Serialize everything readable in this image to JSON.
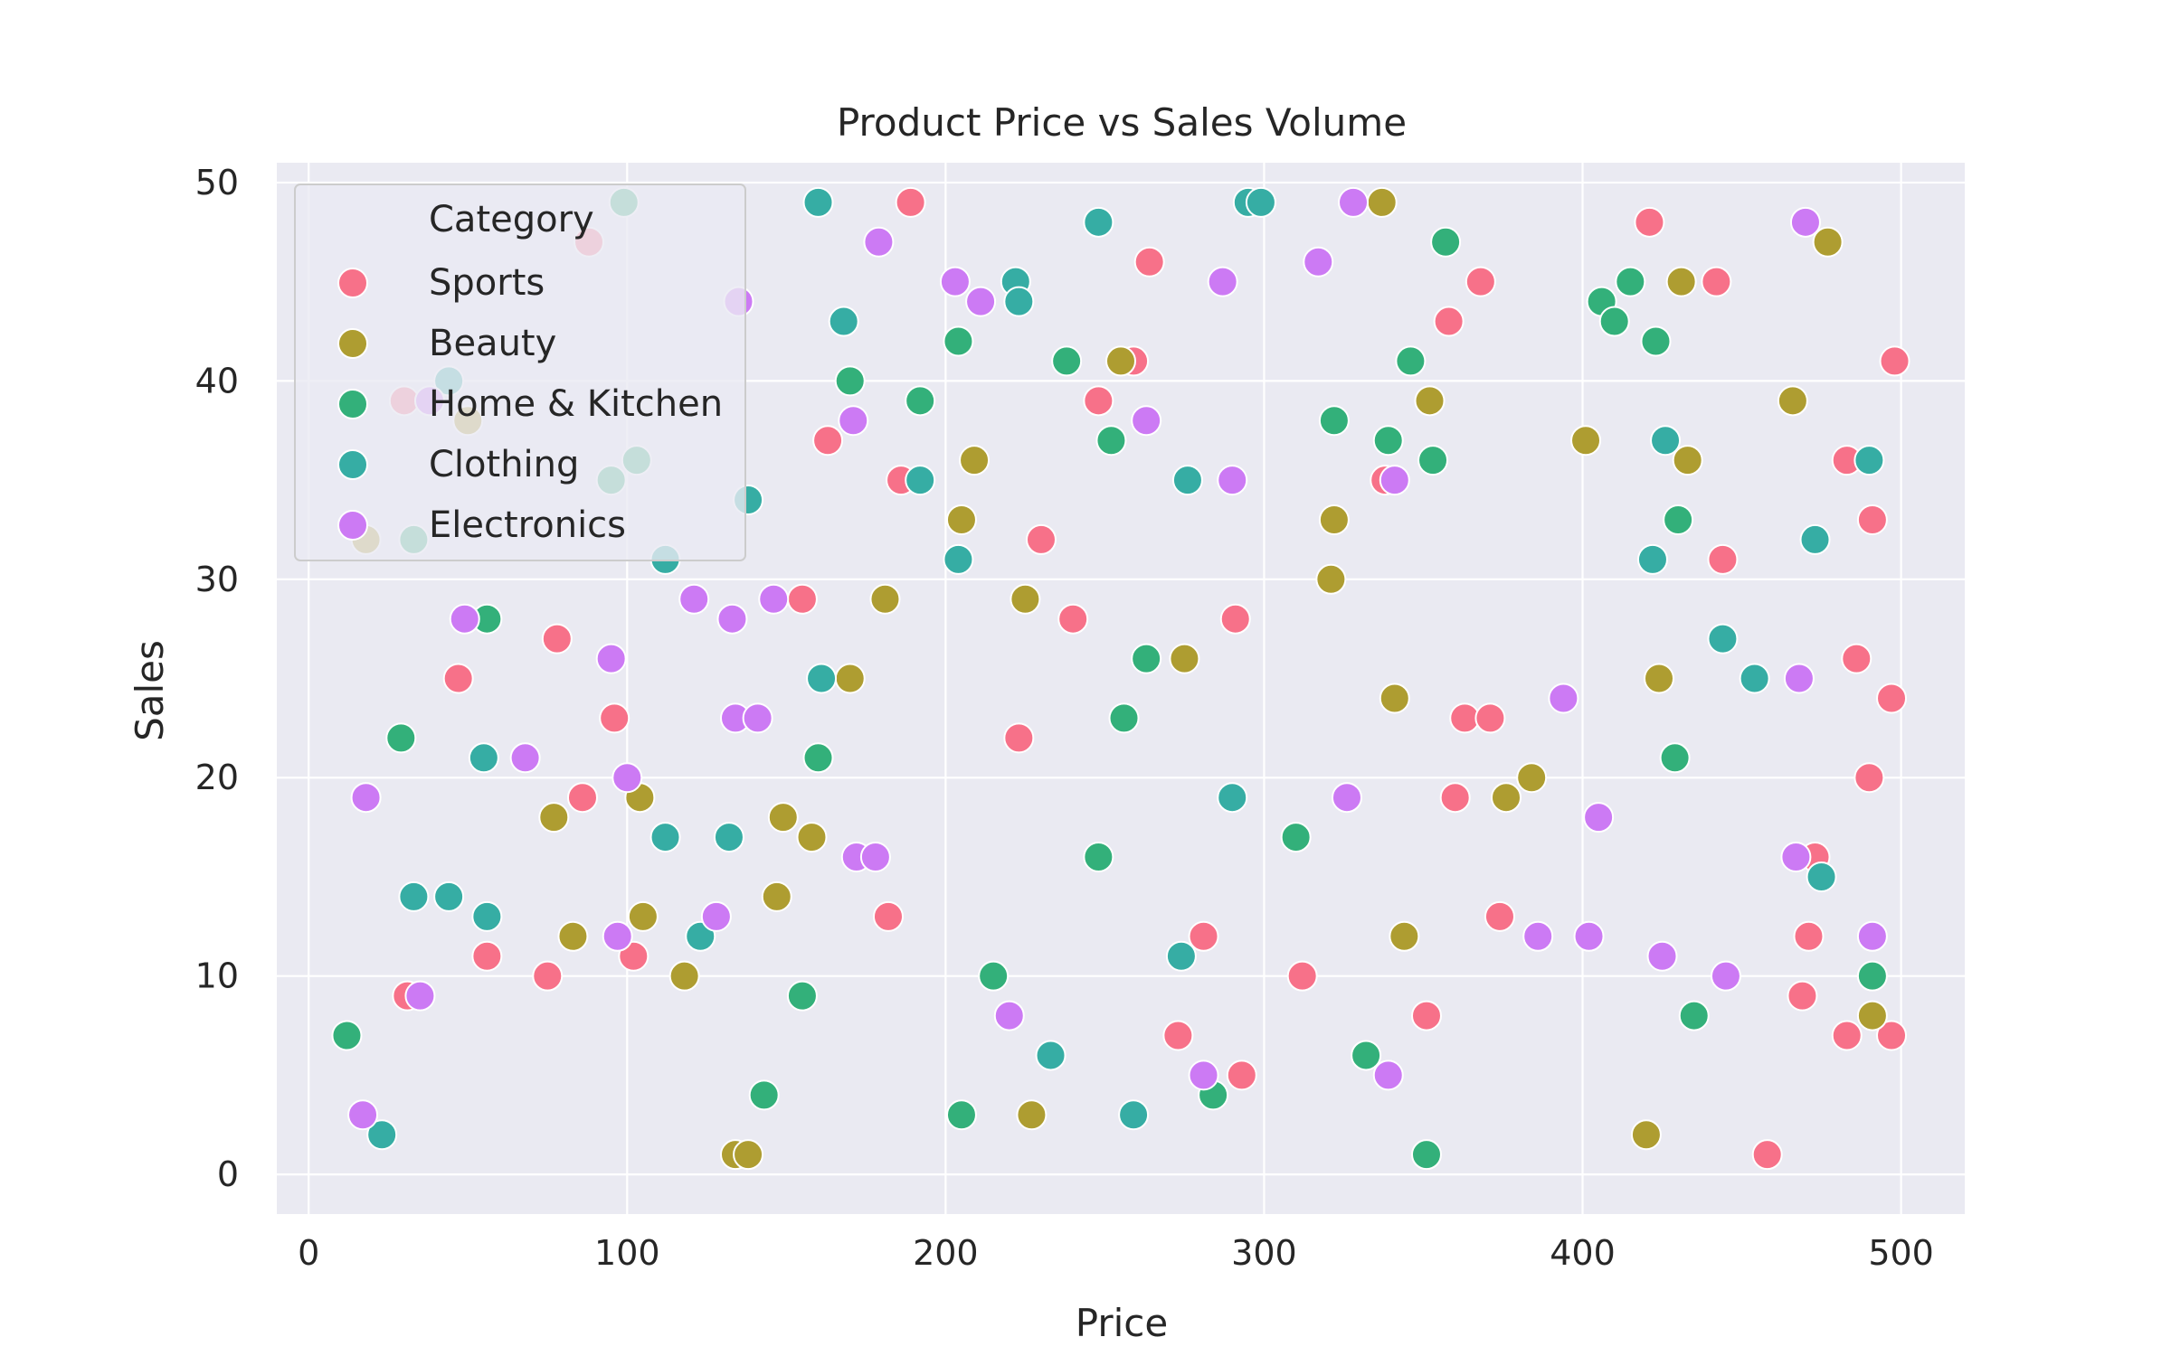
{
  "chart_data": {
    "type": "scatter",
    "title": "Product Price vs Sales Volume",
    "xlabel": "Price",
    "ylabel": "Sales",
    "xlim": [
      -10,
      520
    ],
    "ylim": [
      -2,
      51
    ],
    "x_ticks": [
      0,
      100,
      200,
      300,
      400,
      500
    ],
    "y_ticks": [
      0,
      10,
      20,
      30,
      40,
      50
    ],
    "grid": true,
    "legend": {
      "title": "Category",
      "placement": "top-left"
    },
    "series": [
      {
        "name": "Sports",
        "color": "#f77189",
        "points": [
          [
            88,
            47
          ],
          [
            30,
            39
          ],
          [
            47,
            25
          ],
          [
            78,
            27
          ],
          [
            96,
            23
          ],
          [
            31,
            9
          ],
          [
            56,
            11
          ],
          [
            75,
            10
          ],
          [
            86,
            19
          ],
          [
            102,
            11
          ],
          [
            189,
            49
          ],
          [
            163,
            37
          ],
          [
            186,
            35
          ],
          [
            155,
            29
          ],
          [
            182,
            13
          ],
          [
            230,
            32
          ],
          [
            240,
            28
          ],
          [
            223,
            22
          ],
          [
            248,
            39
          ],
          [
            259,
            41
          ],
          [
            264,
            46
          ],
          [
            273,
            7
          ],
          [
            281,
            12
          ],
          [
            291,
            28
          ],
          [
            293,
            5
          ],
          [
            312,
            10
          ],
          [
            338,
            35
          ],
          [
            351,
            8
          ],
          [
            358,
            43
          ],
          [
            360,
            19
          ],
          [
            363,
            23
          ],
          [
            368,
            45
          ],
          [
            371,
            23
          ],
          [
            374,
            13
          ],
          [
            421,
            48
          ],
          [
            442,
            45
          ],
          [
            444,
            31
          ],
          [
            458,
            1
          ],
          [
            469,
            9
          ],
          [
            471,
            12
          ],
          [
            473,
            16
          ],
          [
            483,
            36
          ],
          [
            483,
            7
          ],
          [
            486,
            26
          ],
          [
            490,
            20
          ],
          [
            491,
            33
          ],
          [
            497,
            24
          ],
          [
            498,
            41
          ],
          [
            497,
            7
          ]
        ]
      },
      {
        "name": "Beauty",
        "color": "#ae9d31",
        "points": [
          [
            18,
            32
          ],
          [
            50,
            38
          ],
          [
            77,
            18
          ],
          [
            83,
            12
          ],
          [
            104,
            19
          ],
          [
            105,
            13
          ],
          [
            118,
            10
          ],
          [
            134,
            1
          ],
          [
            138,
            1
          ],
          [
            147,
            14
          ],
          [
            149,
            18
          ],
          [
            158,
            17
          ],
          [
            170,
            25
          ],
          [
            181,
            29
          ],
          [
            205,
            33
          ],
          [
            209,
            36
          ],
          [
            225,
            29
          ],
          [
            227,
            3
          ],
          [
            255,
            41
          ],
          [
            275,
            26
          ],
          [
            321,
            30
          ],
          [
            322,
            33
          ],
          [
            337,
            49
          ],
          [
            341,
            24
          ],
          [
            344,
            12
          ],
          [
            352,
            39
          ],
          [
            376,
            19
          ],
          [
            384,
            20
          ],
          [
            401,
            37
          ],
          [
            420,
            2
          ],
          [
            424,
            25
          ],
          [
            431,
            45
          ],
          [
            433,
            36
          ],
          [
            466,
            39
          ],
          [
            477,
            47
          ],
          [
            491,
            8
          ]
        ]
      },
      {
        "name": "Home & Kitchen",
        "color": "#33b07a",
        "points": [
          [
            12,
            7
          ],
          [
            29,
            22
          ],
          [
            33,
            32
          ],
          [
            56,
            28
          ],
          [
            95,
            35
          ],
          [
            99,
            49
          ],
          [
            103,
            36
          ],
          [
            143,
            4
          ],
          [
            155,
            9
          ],
          [
            160,
            21
          ],
          [
            170,
            40
          ],
          [
            192,
            39
          ],
          [
            204,
            42
          ],
          [
            205,
            3
          ],
          [
            215,
            10
          ],
          [
            238,
            41
          ],
          [
            248,
            16
          ],
          [
            252,
            37
          ],
          [
            256,
            23
          ],
          [
            263,
            26
          ],
          [
            284,
            4
          ],
          [
            310,
            17
          ],
          [
            322,
            38
          ],
          [
            332,
            6
          ],
          [
            339,
            37
          ],
          [
            346,
            41
          ],
          [
            351,
            1
          ],
          [
            353,
            36
          ],
          [
            357,
            47
          ],
          [
            406,
            44
          ],
          [
            410,
            43
          ],
          [
            415,
            45
          ],
          [
            423,
            42
          ],
          [
            429,
            21
          ],
          [
            430,
            33
          ],
          [
            435,
            8
          ],
          [
            491,
            10
          ]
        ]
      },
      {
        "name": "Clothing",
        "color": "#36ada4",
        "points": [
          [
            23,
            2
          ],
          [
            33,
            14
          ],
          [
            44,
            14
          ],
          [
            44,
            40
          ],
          [
            55,
            21
          ],
          [
            56,
            13
          ],
          [
            112,
            31
          ],
          [
            112,
            17
          ],
          [
            123,
            12
          ],
          [
            132,
            17
          ],
          [
            138,
            34
          ],
          [
            160,
            49
          ],
          [
            161,
            25
          ],
          [
            168,
            43
          ],
          [
            192,
            35
          ],
          [
            204,
            31
          ],
          [
            222,
            45
          ],
          [
            223,
            44
          ],
          [
            233,
            6
          ],
          [
            248,
            48
          ],
          [
            259,
            3
          ],
          [
            274,
            11
          ],
          [
            276,
            35
          ],
          [
            290,
            19
          ],
          [
            295,
            49
          ],
          [
            299,
            49
          ],
          [
            422,
            31
          ],
          [
            426,
            37
          ],
          [
            444,
            27
          ],
          [
            454,
            25
          ],
          [
            473,
            32
          ],
          [
            475,
            15
          ],
          [
            490,
            36
          ]
        ]
      },
      {
        "name": "Electronics",
        "color": "#cc7af4",
        "points": [
          [
            38,
            39
          ],
          [
            17,
            3
          ],
          [
            18,
            19
          ],
          [
            35,
            9
          ],
          [
            49,
            28
          ],
          [
            68,
            21
          ],
          [
            95,
            26
          ],
          [
            97,
            12
          ],
          [
            100,
            20
          ],
          [
            121,
            29
          ],
          [
            128,
            13
          ],
          [
            133,
            28
          ],
          [
            134,
            23
          ],
          [
            135,
            44
          ],
          [
            141,
            23
          ],
          [
            146,
            29
          ],
          [
            171,
            38
          ],
          [
            172,
            16
          ],
          [
            178,
            16
          ],
          [
            179,
            47
          ],
          [
            203,
            45
          ],
          [
            211,
            44
          ],
          [
            220,
            8
          ],
          [
            263,
            38
          ],
          [
            281,
            5
          ],
          [
            287,
            45
          ],
          [
            290,
            35
          ],
          [
            317,
            46
          ],
          [
            326,
            19
          ],
          [
            328,
            49
          ],
          [
            339,
            5
          ],
          [
            341,
            35
          ],
          [
            394,
            24
          ],
          [
            386,
            12
          ],
          [
            402,
            12
          ],
          [
            405,
            18
          ],
          [
            425,
            11
          ],
          [
            445,
            10
          ],
          [
            468,
            25
          ],
          [
            467,
            16
          ],
          [
            470,
            48
          ],
          [
            491,
            12
          ]
        ]
      }
    ]
  }
}
